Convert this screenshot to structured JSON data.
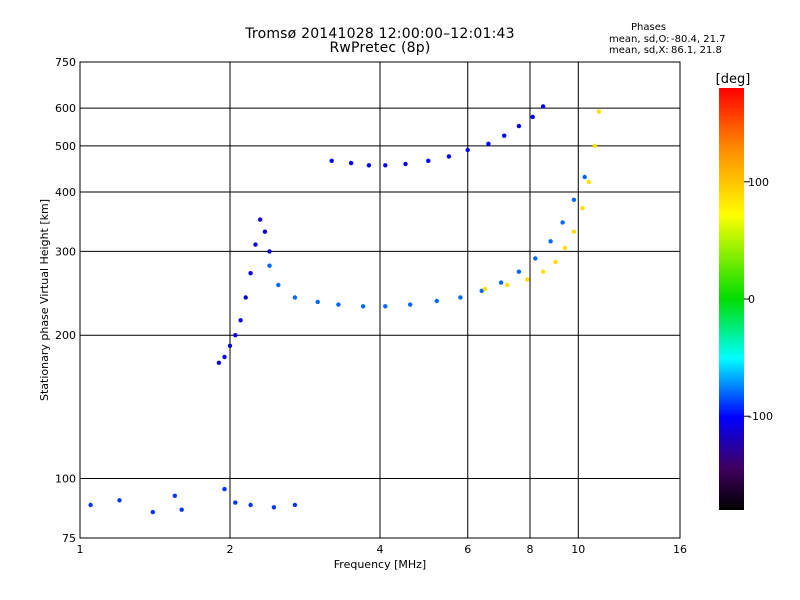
{
  "chart_data": {
    "type": "scatter",
    "title": "Tromsø 20141028 12:00:00–12:01:43",
    "subtitle": "RwPretec (8p)",
    "xlabel": "Frequency [MHz]",
    "ylabel": "Stationary phase Virtual Height [km]",
    "x_scale": "log",
    "y_scale": "log",
    "xlim": [
      1,
      16
    ],
    "ylim": [
      75,
      750
    ],
    "x_ticks": [
      1,
      2,
      4,
      6,
      8,
      10,
      16
    ],
    "y_ticks": [
      75,
      100,
      200,
      300,
      400,
      500,
      600,
      750
    ],
    "grid": true,
    "legend_title": "Phases",
    "stats": [
      {
        "label": "mean, sd,O:",
        "values": "-80.4, 21.7"
      },
      {
        "label": "mean, sd,X:",
        "values": "86.1, 21.8"
      }
    ],
    "colorbar": {
      "title": "[deg]",
      "range": [
        -180,
        180
      ],
      "ticks": [
        100,
        0,
        -100
      ]
    },
    "series": [
      {
        "trace": "upper-arc",
        "color_value": -100,
        "x": [
          3.2,
          3.5,
          3.8,
          4.1,
          4.5,
          5.0,
          5.5,
          6.0,
          6.6,
          7.1,
          7.6,
          8.1,
          8.5
        ],
        "y": [
          465,
          460,
          455,
          455,
          458,
          465,
          475,
          490,
          505,
          525,
          550,
          575,
          605
        ]
      },
      {
        "trace": "lower-arc",
        "color_value": -80,
        "x": [
          2.4,
          2.5,
          2.7,
          3.0,
          3.3,
          3.7,
          4.1,
          4.6,
          5.2,
          5.8,
          6.4,
          7.0,
          7.6,
          8.2,
          8.8,
          9.3,
          9.8,
          10.3
        ],
        "y": [
          280,
          255,
          240,
          235,
          232,
          230,
          230,
          232,
          236,
          240,
          248,
          258,
          272,
          290,
          315,
          345,
          385,
          430
        ]
      },
      {
        "trace": "steep-rise",
        "color_value": -110,
        "x": [
          1.9,
          1.95,
          2.0,
          2.05,
          2.1,
          2.15,
          2.2,
          2.25,
          2.3,
          2.35,
          2.4
        ],
        "y": [
          175,
          180,
          190,
          200,
          215,
          240,
          270,
          310,
          350,
          330,
          300
        ]
      },
      {
        "trace": "x-mode",
        "color_value": 90,
        "x": [
          6.5,
          7.2,
          7.9,
          8.5,
          9.0,
          9.4,
          9.8,
          10.2,
          10.5,
          10.8,
          11.0
        ],
        "y": [
          250,
          255,
          262,
          272,
          285,
          305,
          330,
          370,
          420,
          500,
          590
        ]
      },
      {
        "trace": "low-echoes",
        "color_value": -90,
        "x": [
          1.05,
          1.2,
          1.4,
          1.55,
          1.6,
          1.95,
          2.05,
          2.2,
          2.45,
          2.7
        ],
        "y": [
          88,
          90,
          85,
          92,
          86,
          95,
          89,
          88,
          87,
          88
        ]
      }
    ]
  }
}
